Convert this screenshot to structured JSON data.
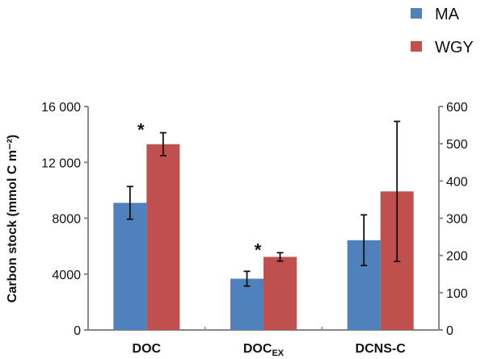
{
  "chart_data": {
    "type": "bar",
    "title": "",
    "ylabel": "Carbon stock (mmol C m⁻²)",
    "xlabel": "",
    "categories": [
      {
        "label": "DOC",
        "sub": "",
        "axis": "left"
      },
      {
        "label": "DOC",
        "sub": "EX",
        "axis": "left"
      },
      {
        "label": "DCNS-C",
        "sub": "",
        "axis": "right"
      }
    ],
    "series": [
      {
        "name": "MA",
        "color": "#4f81bd",
        "values": [
          9100,
          3670,
          241
        ],
        "errors": [
          1170,
          530,
          68
        ]
      },
      {
        "name": "WGY",
        "color": "#c0504d",
        "values": [
          13300,
          5230,
          372
        ],
        "errors": [
          820,
          300,
          188
        ]
      }
    ],
    "significance": [
      {
        "category": 0,
        "mark": "*"
      },
      {
        "category": 1,
        "mark": "*"
      }
    ],
    "left_axis": {
      "ylim": [
        0,
        16000
      ],
      "ticks": [
        0,
        4000,
        8000,
        12000,
        16000
      ],
      "tick_labels": [
        "0",
        "4000",
        "8000",
        "12 000",
        "16 000"
      ]
    },
    "right_axis": {
      "ylim": [
        0,
        600
      ],
      "ticks": [
        0,
        100,
        200,
        300,
        400,
        500,
        600
      ],
      "tick_labels": [
        "0",
        "100",
        "200",
        "300",
        "400",
        "500",
        "600"
      ]
    },
    "legend_position": "top-right",
    "grid": false
  }
}
